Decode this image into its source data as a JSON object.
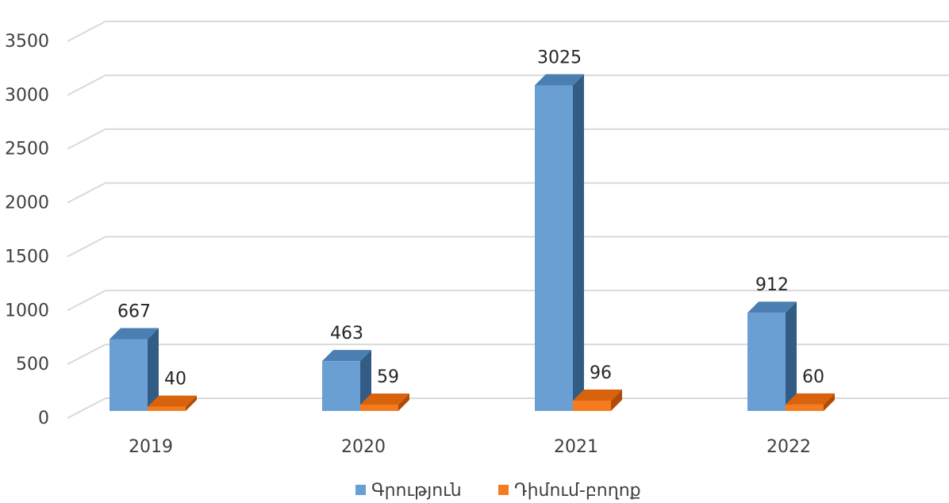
{
  "chart_data": {
    "type": "bar",
    "categories": [
      "2019",
      "2020",
      "2021",
      "2022"
    ],
    "series": [
      {
        "name": "Գրություն",
        "values": [
          667,
          463,
          3025,
          912
        ],
        "color": "#6a9fd4",
        "side_color": "#335c85",
        "top_color": "#4b7fb2"
      },
      {
        "name": "Դիմում-բողոք",
        "values": [
          40,
          59,
          96,
          60
        ],
        "color": "#f47c20",
        "side_color": "#b04c06",
        "top_color": "#d9620d"
      }
    ],
    "ylim": [
      0,
      3500
    ],
    "yticks": [
      "0",
      "500",
      "1000",
      "1500",
      "2000",
      "2500",
      "3000",
      "3500"
    ],
    "grid": true,
    "legend": "bottom",
    "data_labels": true,
    "three_d": true
  }
}
